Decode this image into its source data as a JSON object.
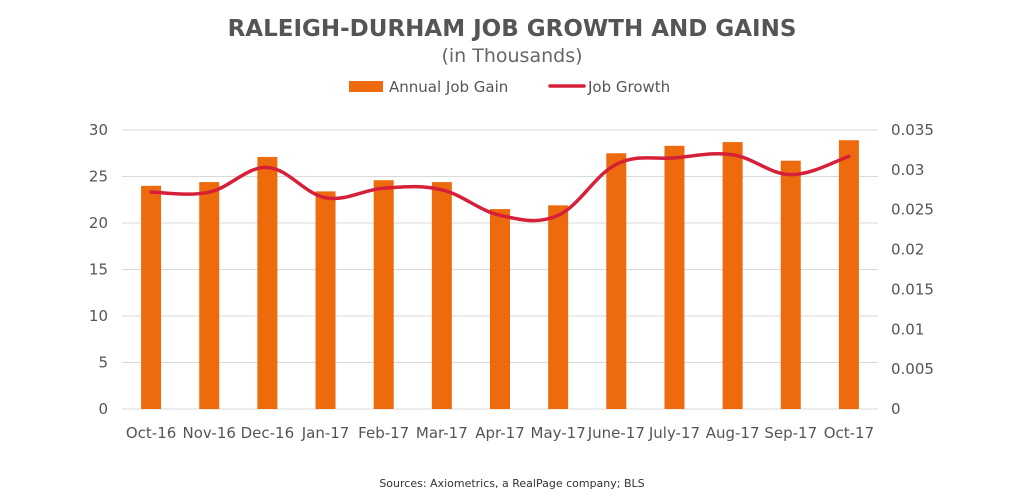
{
  "chart_data": {
    "type": "bar",
    "title": "RALEIGH-DURHAM JOB GROWTH AND GAINS",
    "subtitle": "(in Thousands)",
    "categories": [
      "Oct-16",
      "Nov-16",
      "Dec-16",
      "Jan-17",
      "Feb-17",
      "Mar-17",
      "Apr-17",
      "May-17",
      "June-17",
      "July-17",
      "Aug-17",
      "Sep-17",
      "Oct-17"
    ],
    "series": [
      {
        "name": "Annual Job Gain",
        "type": "bar",
        "axis": "left",
        "color": "#ed6b0c",
        "values": [
          24.0,
          24.4,
          27.1,
          23.4,
          24.6,
          24.4,
          21.5,
          21.9,
          27.5,
          28.3,
          28.7,
          26.7,
          28.9
        ]
      },
      {
        "name": "Job Growth",
        "type": "line",
        "axis": "right",
        "color": "#d62039",
        "values": [
          0.0272,
          0.0272,
          0.0303,
          0.0265,
          0.0277,
          0.0275,
          0.0243,
          0.0243,
          0.0307,
          0.0315,
          0.0319,
          0.0294,
          0.0317
        ]
      }
    ],
    "y_left": {
      "lim": [
        0,
        30
      ],
      "ticks": [
        "0",
        "5",
        "10",
        "15",
        "20",
        "25",
        "30"
      ]
    },
    "y_right": {
      "lim": [
        0,
        0.035
      ],
      "ticks": [
        "0",
        "0.005",
        "0.01",
        "0.015",
        "0.02",
        "0.025",
        "0.03",
        "0.035"
      ]
    },
    "grid": true,
    "legend": "top-center",
    "source": "Sources: Axiometrics, a RealPage company; BLS"
  }
}
